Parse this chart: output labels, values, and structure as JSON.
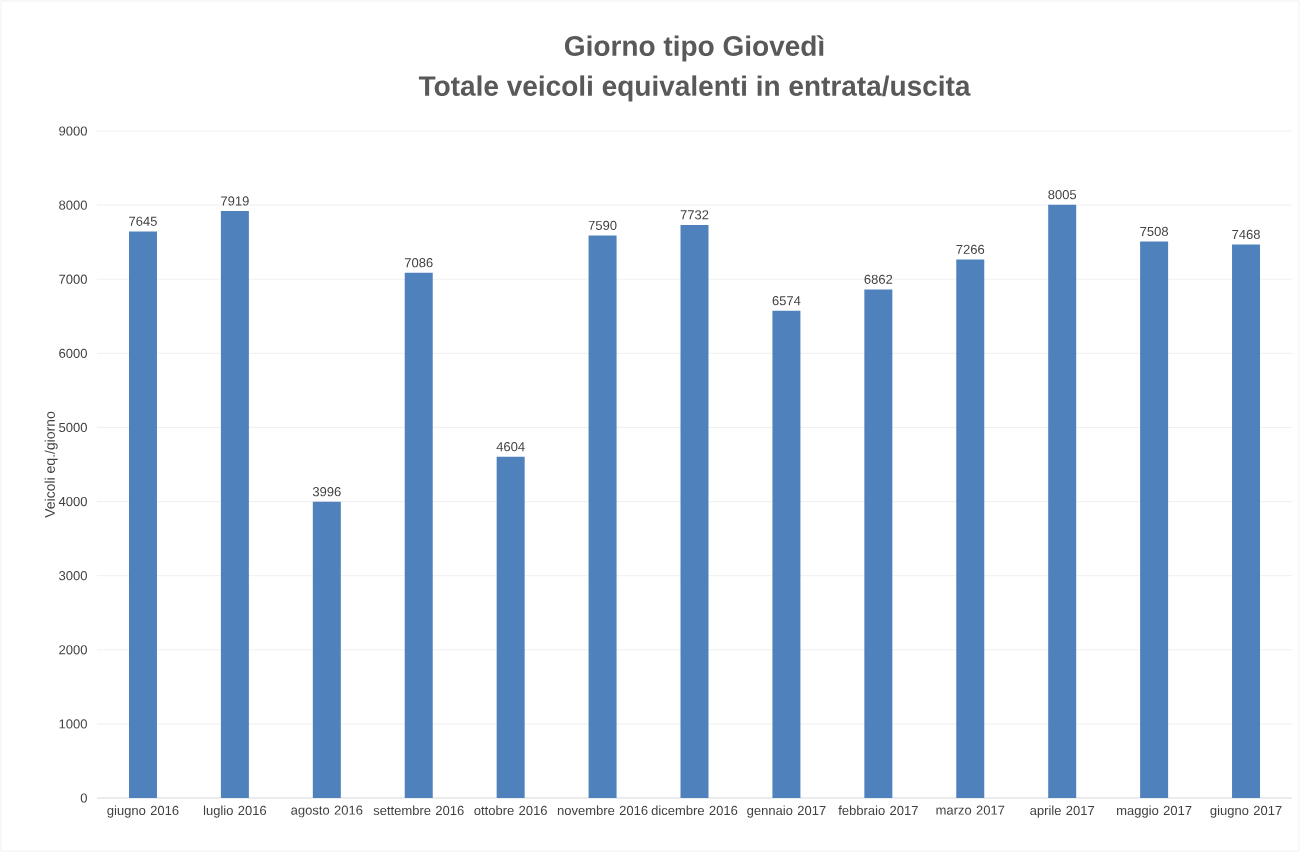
{
  "chart_data": {
    "type": "bar",
    "title": "Giorno tipo Giovedì\nTotale veicoli equivalenti in entrata/uscita",
    "ylabel": "Veicoli eq./giorno",
    "categories": [
      "giugno 2016",
      "luglio 2016",
      "agosto 2016",
      "settembre 2016",
      "ottobre 2016",
      "novembre 2016",
      "dicembre 2016",
      "gennaio 2017",
      "febbraio 2017",
      "marzo 2017",
      "aprile 2017",
      "maggio 2017",
      "giugno 2017"
    ],
    "values": [
      7645,
      7919,
      3996,
      7086,
      4604,
      7590,
      7732,
      6574,
      6862,
      7266,
      8005,
      7508,
      7468
    ],
    "color": "#4f81bd",
    "ylim": [
      0,
      9000
    ],
    "yticks": [
      0,
      1000,
      2000,
      3000,
      4000,
      5000,
      6000,
      7000,
      8000,
      9000
    ],
    "grid": "y",
    "data_labels": true
  }
}
